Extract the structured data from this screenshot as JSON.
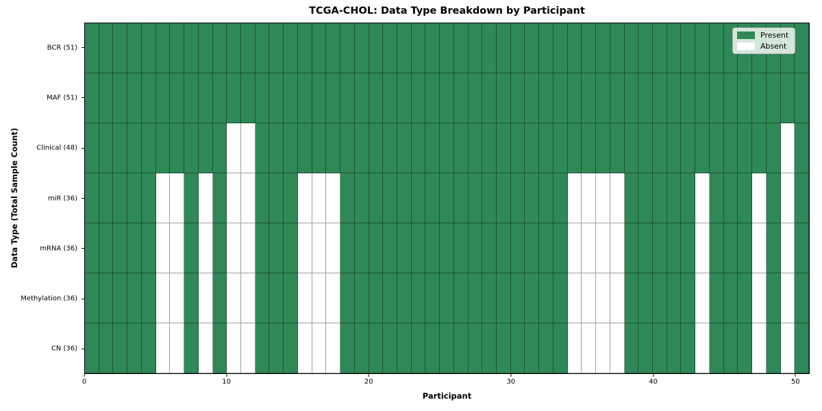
{
  "title": "TCGA-CHOL: Data Type Breakdown by Participant",
  "chart_data": {
    "type": "heatmap",
    "title": "TCGA-CHOL: Data Type Breakdown by Participant",
    "xlabel": "Participant",
    "ylabel": "Data Type (Total Sample Count)",
    "n_participants": 51,
    "x_ticks": [
      0,
      10,
      20,
      30,
      40,
      50
    ],
    "grid": true,
    "colors": {
      "present": "#2f8857",
      "absent": "#ffffff",
      "cell_edge": "rgba(0,0,0,0.38)",
      "frame": "#000000"
    },
    "legend": {
      "position": "upper right",
      "items": [
        {
          "label": "Present",
          "color": "#2f8857"
        },
        {
          "label": "Absent",
          "color": "#ffffff"
        }
      ]
    },
    "rows": [
      {
        "label": "BCR (51)",
        "total": 51,
        "absent": []
      },
      {
        "label": "MAF (51)",
        "total": 51,
        "absent": []
      },
      {
        "label": "Clinical (48)",
        "total": 48,
        "absent": [
          10,
          11,
          49
        ]
      },
      {
        "label": "miR (36)",
        "total": 36,
        "absent": [
          5,
          6,
          8,
          10,
          11,
          15,
          16,
          17,
          34,
          35,
          36,
          37,
          43,
          47,
          49
        ]
      },
      {
        "label": "mRNA (36)",
        "total": 36,
        "absent": [
          5,
          6,
          8,
          10,
          11,
          15,
          16,
          17,
          34,
          35,
          36,
          37,
          43,
          47,
          49
        ]
      },
      {
        "label": "Methylation (36)",
        "total": 36,
        "absent": [
          5,
          6,
          8,
          10,
          11,
          15,
          16,
          17,
          34,
          35,
          36,
          37,
          43,
          47,
          49
        ]
      },
      {
        "label": "CN (36)",
        "total": 36,
        "absent": [
          5,
          6,
          8,
          10,
          11,
          15,
          16,
          17,
          34,
          35,
          36,
          37,
          43,
          47,
          49
        ]
      }
    ]
  }
}
